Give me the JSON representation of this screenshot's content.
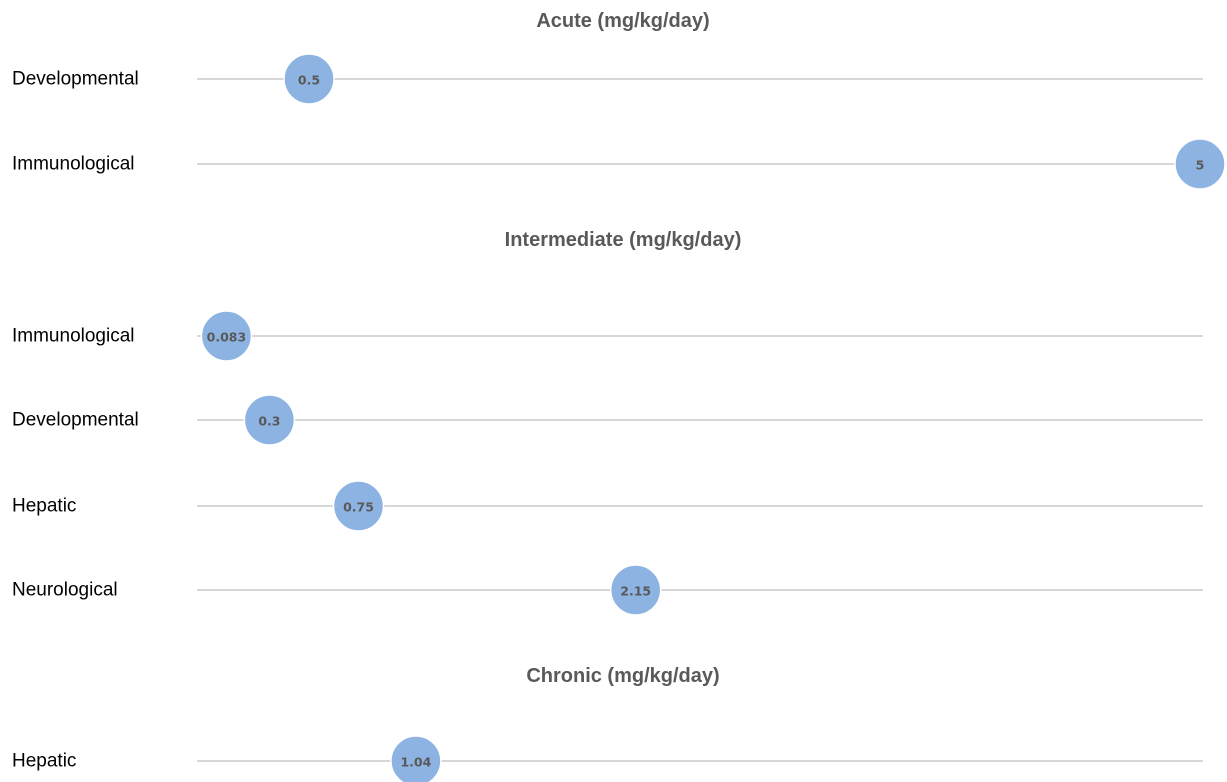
{
  "chart_data": [
    {
      "type": "scatter",
      "title": "Acute (mg/kg/day)",
      "categories": [
        "Developmental",
        "Immunological"
      ],
      "values": [
        0.5,
        5
      ],
      "data_labels": [
        "0.5",
        "5"
      ],
      "xlim": [
        0,
        5
      ],
      "grid": false
    },
    {
      "type": "scatter",
      "title": "Intermediate (mg/kg/day)",
      "categories": [
        "Immunological",
        "Developmental",
        "Hepatic",
        "Neurological"
      ],
      "values": [
        0.083,
        0.3,
        0.75,
        2.15
      ],
      "data_labels": [
        "0.083",
        "0.3",
        "0.75",
        "2.15"
      ],
      "xlim": [
        0,
        5
      ],
      "grid": false
    },
    {
      "type": "scatter",
      "title": "Chronic (mg/kg/day)",
      "categories": [
        "Hepatic"
      ],
      "values": [
        1.04
      ],
      "data_labels": [
        "1.04"
      ],
      "xlim": [
        0,
        5
      ],
      "grid": false
    }
  ],
  "colors": {
    "bubble": "#8db3e2",
    "line": "#bfbfbf",
    "title": "#595959",
    "label": "#000000",
    "bubble_label": "#595959"
  }
}
